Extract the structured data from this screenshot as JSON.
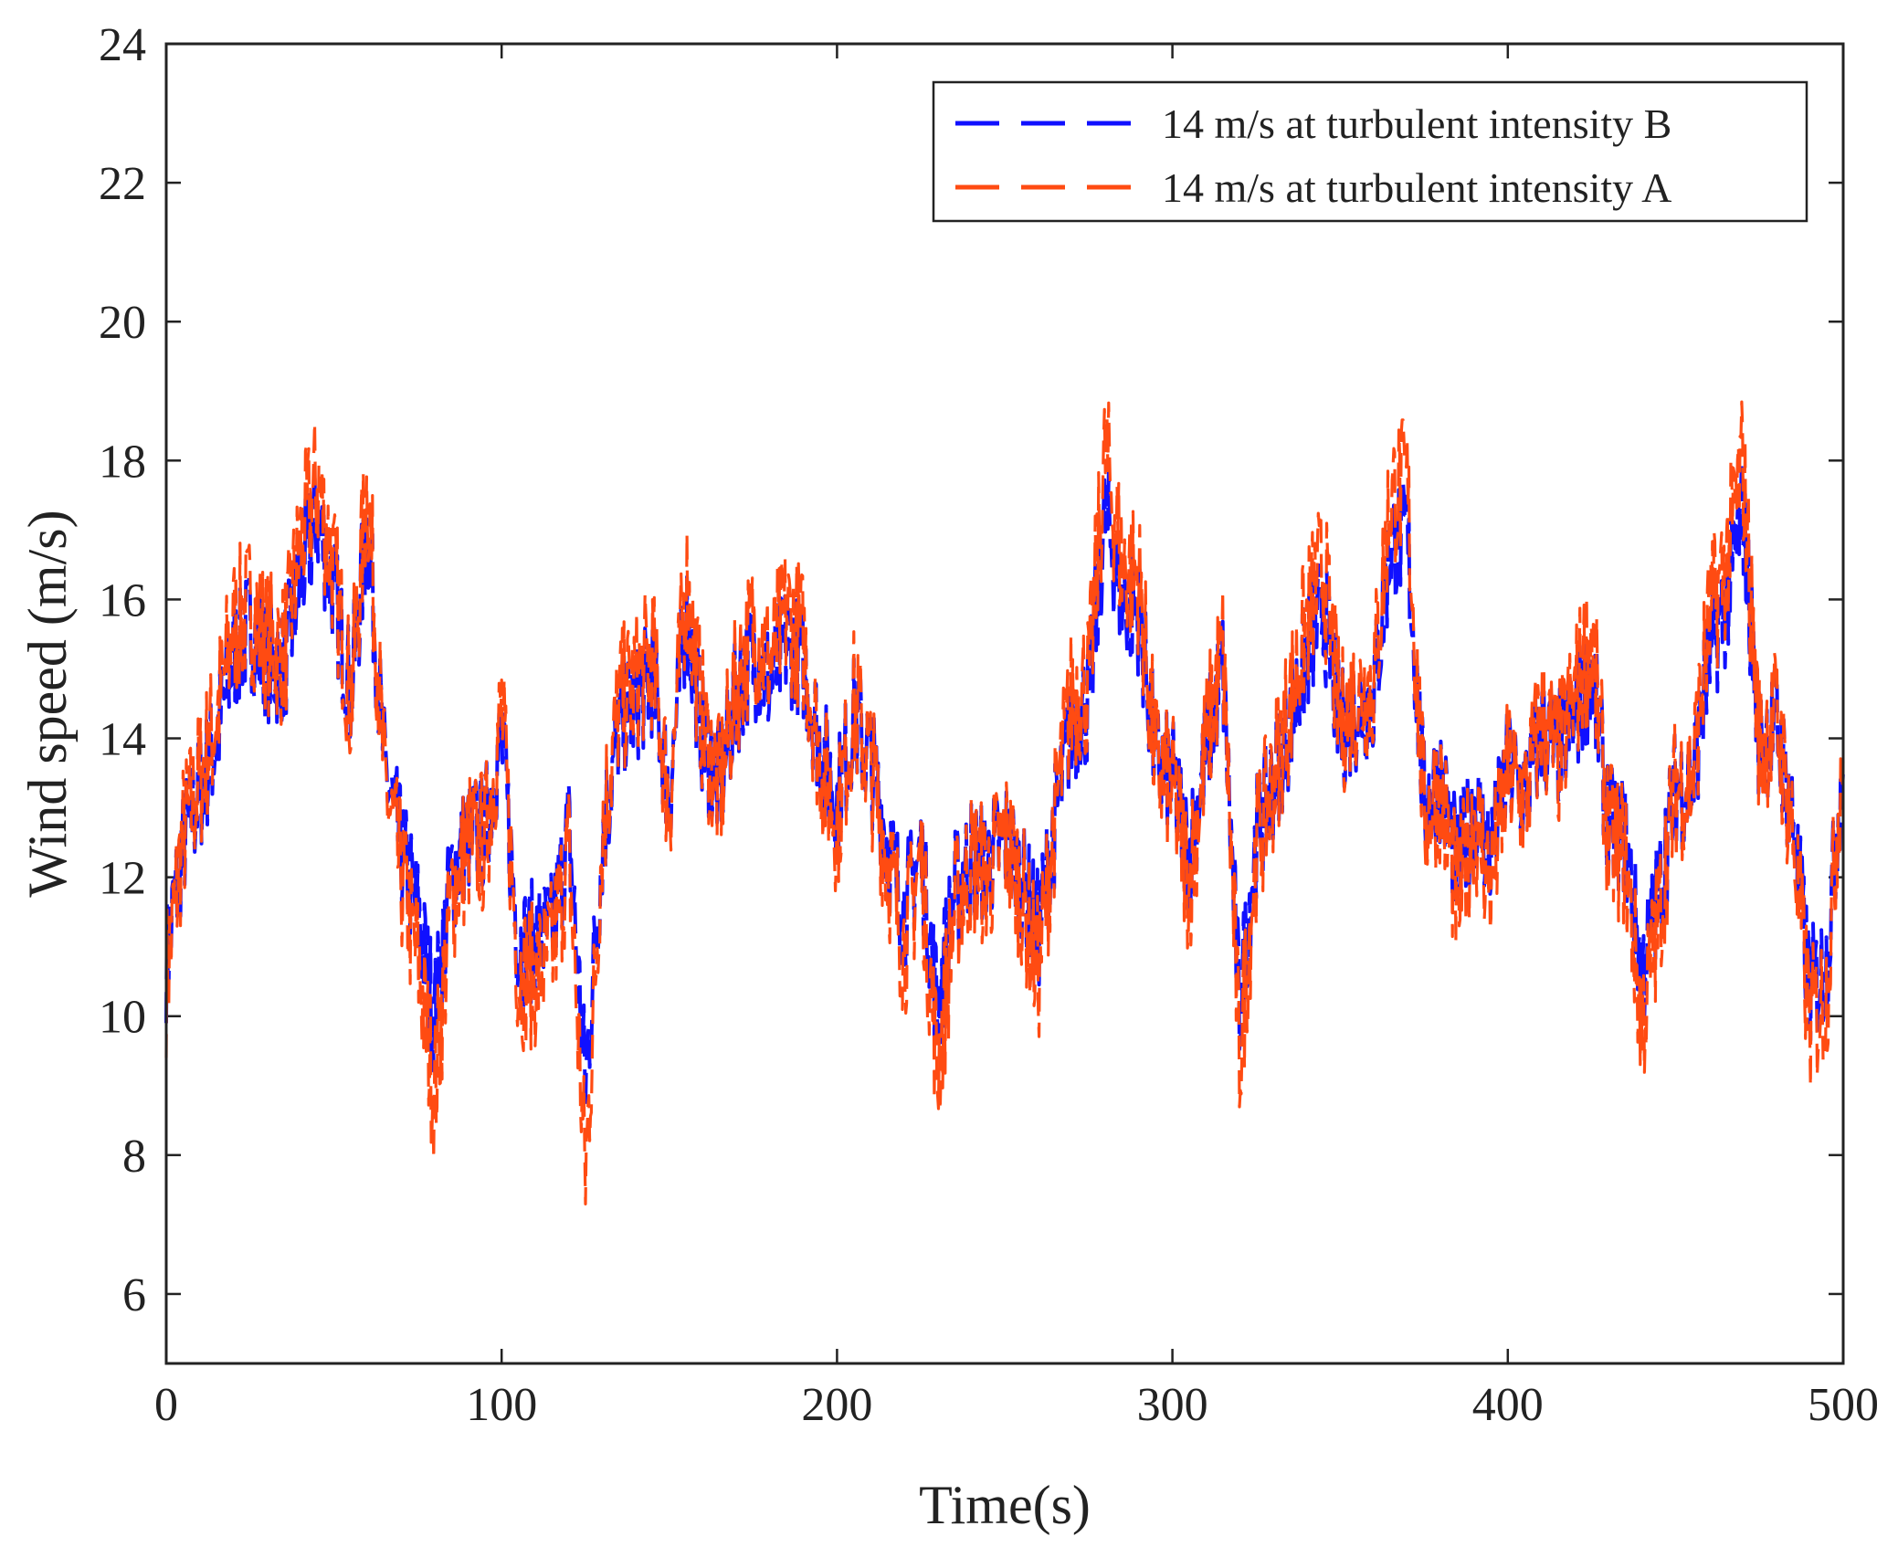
{
  "chart_data": {
    "type": "line",
    "xlabel": "Time(s)",
    "ylabel": "Wind speed (m/s)",
    "xlim": [
      0,
      500
    ],
    "ylim": [
      5,
      24
    ],
    "xticks": [
      0,
      100,
      200,
      300,
      400,
      500
    ],
    "yticks": [
      6,
      8,
      10,
      12,
      14,
      16,
      18,
      20,
      22,
      24
    ],
    "grid": false,
    "legend_position": "top-right",
    "series": [
      {
        "name": "14 m/s at turbulent intensity B",
        "color": "#1010ff",
        "dash": "dashed",
        "x": [
          0,
          5,
          10,
          15,
          20,
          25,
          30,
          35,
          40,
          45,
          50,
          55,
          60,
          65,
          70,
          75,
          80,
          85,
          90,
          95,
          100,
          105,
          110,
          115,
          120,
          125,
          130,
          135,
          140,
          145,
          150,
          155,
          160,
          165,
          170,
          175,
          180,
          185,
          190,
          195,
          200,
          205,
          210,
          215,
          220,
          225,
          230,
          235,
          240,
          245,
          250,
          255,
          260,
          265,
          270,
          275,
          280,
          285,
          290,
          295,
          300,
          305,
          310,
          315,
          320,
          325,
          330,
          335,
          340,
          345,
          350,
          355,
          360,
          365,
          370,
          375,
          380,
          385,
          390,
          395,
          400,
          405,
          410,
          415,
          420,
          425,
          430,
          435,
          440,
          445,
          450,
          455,
          460,
          465,
          470,
          475,
          480,
          485,
          490,
          495,
          500
        ],
        "y": [
          10.8,
          12.5,
          13.2,
          14.0,
          15.2,
          15.6,
          15.1,
          15.0,
          16.3,
          17.2,
          16.1,
          14.6,
          17.1,
          13.6,
          12.4,
          11.5,
          10.0,
          12.0,
          12.6,
          12.7,
          14.0,
          11.0,
          11.1,
          11.2,
          12.7,
          9.0,
          12.5,
          14.2,
          14.5,
          14.9,
          13.2,
          15.8,
          14.0,
          13.3,
          14.6,
          15.2,
          14.8,
          15.4,
          15.1,
          13.9,
          13.1,
          14.3,
          13.7,
          12.5,
          11.5,
          12.4,
          10.1,
          11.8,
          12.3,
          12.2,
          12.6,
          12.0,
          11.2,
          12.8,
          14.2,
          14.5,
          17.2,
          16.0,
          15.8,
          13.7,
          13.4,
          12.3,
          13.8,
          15.0,
          10.1,
          12.6,
          13.4,
          14.2,
          15.2,
          15.9,
          14.1,
          14.4,
          14.6,
          16.8,
          16.9,
          13.1,
          13.4,
          12.1,
          13.1,
          12.3,
          13.6,
          13.2,
          14.1,
          13.8,
          14.3,
          15.0,
          12.8,
          12.6,
          10.6,
          11.8,
          13.3,
          13.3,
          15.2,
          15.9,
          17.3,
          13.9,
          14.2,
          12.8,
          10.4,
          10.7,
          13.9
        ]
      },
      {
        "name": "14 m/s at turbulent intensity A",
        "color": "#ff4b12",
        "dash": "dashed",
        "x": [
          0,
          5,
          10,
          15,
          20,
          25,
          30,
          35,
          40,
          45,
          50,
          55,
          60,
          65,
          70,
          75,
          80,
          85,
          90,
          95,
          100,
          105,
          110,
          115,
          120,
          125,
          130,
          135,
          140,
          145,
          150,
          155,
          160,
          165,
          170,
          175,
          180,
          185,
          190,
          195,
          200,
          205,
          210,
          215,
          220,
          225,
          230,
          235,
          240,
          245,
          250,
          255,
          260,
          265,
          270,
          275,
          280,
          285,
          290,
          295,
          300,
          305,
          310,
          315,
          320,
          325,
          330,
          335,
          340,
          345,
          350,
          355,
          360,
          365,
          370,
          375,
          380,
          385,
          390,
          395,
          400,
          405,
          410,
          415,
          420,
          425,
          430,
          435,
          440,
          445,
          450,
          455,
          460,
          465,
          470,
          475,
          480,
          485,
          490,
          495,
          500
        ],
        "y": [
          10.5,
          12.6,
          13.4,
          14.3,
          15.6,
          15.9,
          15.4,
          15.2,
          16.8,
          17.7,
          16.4,
          14.5,
          17.7,
          13.4,
          12.0,
          10.8,
          8.9,
          11.7,
          12.5,
          12.5,
          14.4,
          10.6,
          10.6,
          10.9,
          12.4,
          7.7,
          12.7,
          14.5,
          14.8,
          15.2,
          13.0,
          16.3,
          14.2,
          13.2,
          14.8,
          15.6,
          15.1,
          15.8,
          15.4,
          13.7,
          12.8,
          14.5,
          13.6,
          12.3,
          11.0,
          12.3,
          9.2,
          11.5,
          12.2,
          12.0,
          12.6,
          11.8,
          10.6,
          12.9,
          14.6,
          14.8,
          18.1,
          16.5,
          16.3,
          13.6,
          13.3,
          11.9,
          13.9,
          15.3,
          9.4,
          12.4,
          13.4,
          14.5,
          15.7,
          16.5,
          14.2,
          14.6,
          14.8,
          17.5,
          17.6,
          12.9,
          13.3,
          11.6,
          12.9,
          11.9,
          13.5,
          13.1,
          14.3,
          13.7,
          14.6,
          15.5,
          12.6,
          12.3,
          9.9,
          11.4,
          13.3,
          13.4,
          15.7,
          16.5,
          18.0,
          13.9,
          14.3,
          12.6,
          9.9,
          10.3,
          14.1
        ]
      }
    ]
  }
}
